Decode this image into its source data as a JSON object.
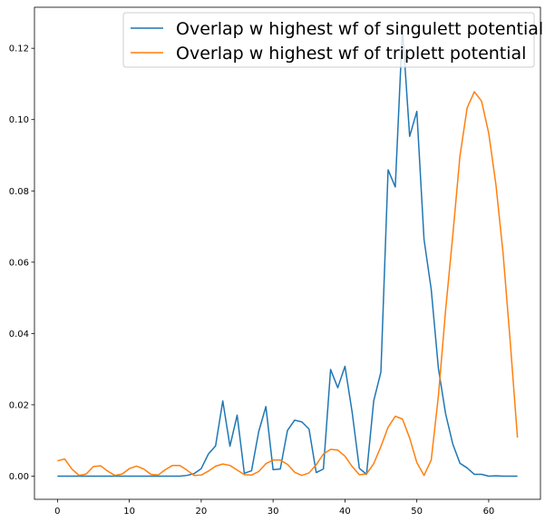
{
  "chart_data": {
    "type": "line",
    "title": "",
    "xlabel": "",
    "ylabel": "",
    "xlim": [
      -3.2,
      67.2
    ],
    "ylim": [
      -0.0065,
      0.1315
    ],
    "x_ticks": [
      0,
      10,
      20,
      30,
      40,
      50,
      60
    ],
    "x_tick_labels": [
      "0",
      "10",
      "20",
      "30",
      "40",
      "50",
      "60"
    ],
    "y_ticks": [
      0.0,
      0.02,
      0.04,
      0.06,
      0.08,
      0.1,
      0.12
    ],
    "y_tick_labels": [
      "0.00",
      "0.02",
      "0.04",
      "0.06",
      "0.08",
      "0.10",
      "0.12"
    ],
    "grid": false,
    "legend_position": "top-right",
    "x": [
      0,
      1,
      2,
      3,
      4,
      5,
      6,
      7,
      8,
      9,
      10,
      11,
      12,
      13,
      14,
      15,
      16,
      17,
      18,
      19,
      20,
      21,
      22,
      23,
      24,
      25,
      26,
      27,
      28,
      29,
      30,
      31,
      32,
      33,
      34,
      35,
      36,
      37,
      38,
      39,
      40,
      41,
      42,
      43,
      44,
      45,
      46,
      47,
      48,
      49,
      50,
      51,
      52,
      53,
      54,
      55,
      56,
      57,
      58,
      59,
      60,
      61,
      62,
      63,
      64
    ],
    "series": [
      {
        "name": "Overlap w highest wf of singulett potential",
        "color": "#1f77b4",
        "values": [
          0.0,
          0.0,
          0.0,
          0.0,
          0.0,
          0.0,
          0.0,
          0.0,
          0.0,
          0.0,
          0.0,
          0.0,
          0.0,
          0.0,
          0.0,
          0.0,
          0.0,
          0.0,
          0.0002,
          0.0007,
          0.0021,
          0.0062,
          0.0085,
          0.0211,
          0.0084,
          0.0171,
          0.0008,
          0.0015,
          0.0125,
          0.0195,
          0.0018,
          0.002,
          0.0128,
          0.0157,
          0.0152,
          0.0132,
          0.001,
          0.002,
          0.0299,
          0.0248,
          0.0308,
          0.0179,
          0.0022,
          0.0005,
          0.0211,
          0.0292,
          0.0859,
          0.0811,
          0.1255,
          0.0953,
          0.1023,
          0.0664,
          0.0524,
          0.0302,
          0.0175,
          0.009,
          0.0036,
          0.0023,
          0.0005,
          0.0005,
          0.0,
          0.0001,
          0.0,
          0.0,
          0.0
        ]
      },
      {
        "name": "Overlap w highest wf of triplett potential",
        "color": "#ff7f0e",
        "values": [
          0.0043,
          0.0048,
          0.002,
          0.0002,
          0.0006,
          0.0027,
          0.0029,
          0.0014,
          0.0002,
          0.0006,
          0.0021,
          0.0028,
          0.002,
          0.0005,
          0.0003,
          0.0018,
          0.003,
          0.003,
          0.0017,
          0.0002,
          0.0003,
          0.0014,
          0.0028,
          0.0034,
          0.003,
          0.0017,
          0.0004,
          0.0003,
          0.0013,
          0.0035,
          0.0045,
          0.0045,
          0.0033,
          0.0011,
          0.0002,
          0.0009,
          0.0032,
          0.0062,
          0.0075,
          0.0073,
          0.0056,
          0.0027,
          0.0004,
          0.0006,
          0.0035,
          0.0083,
          0.0137,
          0.0168,
          0.016,
          0.0107,
          0.0038,
          0.0002,
          0.0045,
          0.0225,
          0.0465,
          0.0675,
          0.0898,
          0.1033,
          0.1078,
          0.1052,
          0.0962,
          0.0818,
          0.0625,
          0.0375,
          0.0108
        ]
      }
    ]
  }
}
